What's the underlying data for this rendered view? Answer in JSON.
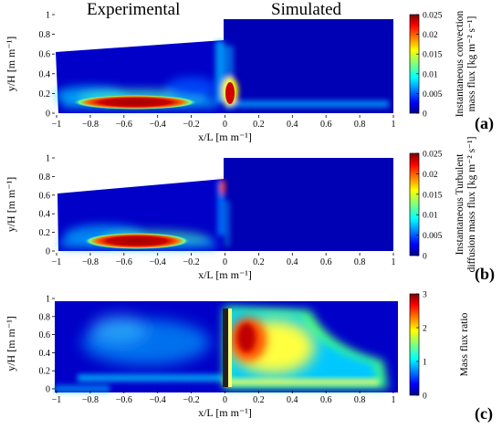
{
  "figure": {
    "header_left": "Experimental",
    "header_right": "Simulated"
  },
  "chart_data": [
    {
      "type": "heatmap",
      "panel_label": "(a)",
      "xlabel": "x/L [m m⁻¹]",
      "ylabel": "y/H [m m⁻¹]",
      "xlim": [
        -1,
        1
      ],
      "ylim": [
        0,
        1
      ],
      "xticks": [
        "−1",
        "−0.8",
        "−0.6",
        "−0.4",
        "−0.2",
        "0",
        "0.2",
        "0.4",
        "0.6",
        "0.8",
        "1"
      ],
      "yticks": [
        "0",
        "0.2",
        "0.4",
        "0.6",
        "0.8",
        "1"
      ],
      "colorbar": {
        "label_lines": [
          "Instantaneous convection",
          "mass flux [kg m⁻² s⁻¹]"
        ],
        "ticks": [
          "0",
          "0.005",
          "0.01",
          "0.015",
          "0.02",
          "0.025"
        ],
        "min": 0,
        "max": 0.025,
        "colormap": "jet"
      },
      "features": [
        {
          "region": "experimental",
          "description_value": 0.025,
          "x_range": [
            -0.65,
            -0.2
          ],
          "y_range": [
            0.0,
            0.1
          ]
        },
        {
          "region": "simulated",
          "description_value": 0.025,
          "x_range": [
            0.0,
            0.05
          ],
          "y_range": [
            0.05,
            0.22
          ]
        }
      ]
    },
    {
      "type": "heatmap",
      "panel_label": "(b)",
      "xlabel": "x/L [m m⁻¹]",
      "ylabel": "y/H [m m⁻¹]",
      "xlim": [
        -1,
        1
      ],
      "ylim": [
        0,
        1
      ],
      "xticks": [
        "−1",
        "−0.8",
        "−0.6",
        "−0.4",
        "−0.2",
        "0",
        "0.2",
        "0.4",
        "0.6",
        "0.8",
        "1"
      ],
      "yticks": [
        "0",
        "0.2",
        "0.4",
        "0.6",
        "0.8",
        "1"
      ],
      "colorbar": {
        "label_lines": [
          "Instantaneous Turbulent",
          "diffusion mass flux [kg m⁻² s⁻¹]"
        ],
        "ticks": [
          "0",
          "0.005",
          "0.01",
          "0.015",
          "0.02",
          "0.025"
        ],
        "min": 0,
        "max": 0.025,
        "colormap": "jet"
      },
      "features": [
        {
          "region": "experimental",
          "description_value": 0.025,
          "x_range": [
            -0.7,
            -0.2
          ],
          "y_range": [
            0.0,
            0.1
          ]
        }
      ]
    },
    {
      "type": "heatmap",
      "panel_label": "(c)",
      "xlabel": "x/L [m m⁻¹]",
      "ylabel": "y/H [m m⁻¹]",
      "xlim": [
        -1,
        1
      ],
      "ylim": [
        0,
        1
      ],
      "xticks": [
        "−1",
        "−0.8",
        "−0.6",
        "−0.4",
        "−0.2",
        "0",
        "0.2",
        "0.4",
        "0.6",
        "0.8",
        "1"
      ],
      "yticks": [
        "0",
        "0.2",
        "0.4",
        "0.6",
        "0.8",
        "1"
      ],
      "colorbar": {
        "label_lines": [
          "Mass flux ratio"
        ],
        "ticks": [
          "0",
          "1",
          "2",
          "3"
        ],
        "min": 0,
        "max": 3,
        "colormap": "jet"
      },
      "features": [
        {
          "region": "simulated",
          "description_value": 3.0,
          "x_range": [
            0.05,
            0.3
          ],
          "y_range": [
            0.4,
            0.9
          ]
        }
      ]
    }
  ]
}
